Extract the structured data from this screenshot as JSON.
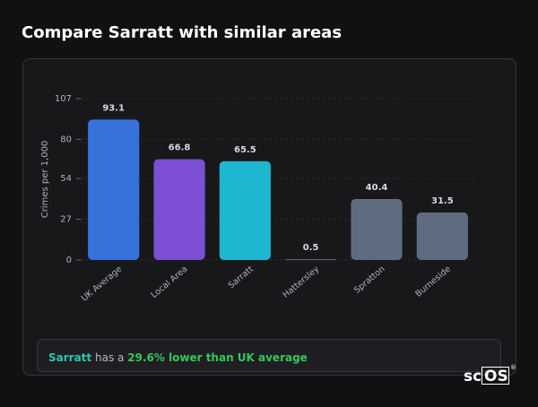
{
  "title": "Compare Sarratt with similar areas",
  "chart_data": {
    "type": "bar",
    "y_label": "Crimes per 1,000",
    "categories": [
      "UK Average",
      "Local Area",
      "Sarratt",
      "Hattersley",
      "Spratton",
      "Burneside"
    ],
    "values": [
      93.1,
      66.8,
      65.5,
      0.5,
      40.4,
      31.5
    ],
    "colors": [
      "#3672d9",
      "#7c4fd5",
      "#1fb6cf",
      "#5f6b7f",
      "#5f6b7f",
      "#5f6b7f"
    ],
    "ylim": [
      0,
      107
    ],
    "yticks": [
      0,
      27,
      54,
      80,
      107
    ],
    "grid": true
  },
  "summary": {
    "area": "Sarratt",
    "middle": "has a",
    "highlight": "29.6% lower than UK average"
  },
  "logo": {
    "prefix": "sc",
    "boxed": "OS",
    "mark": "®"
  }
}
